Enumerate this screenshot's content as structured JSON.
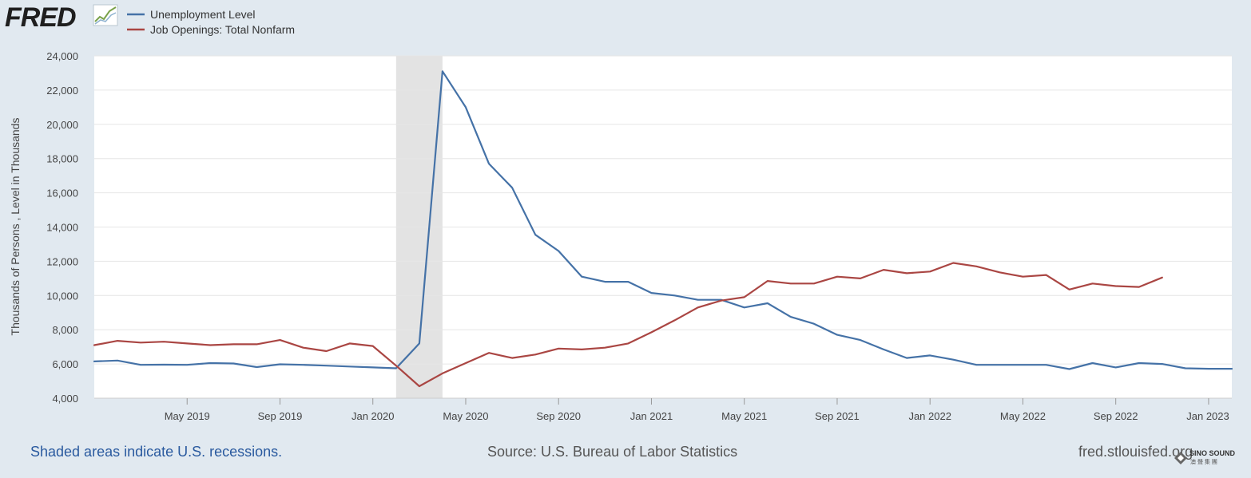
{
  "brand": {
    "logo_text": "FRED"
  },
  "legend": [
    {
      "label": "Unemployment Level",
      "color": "#4572a7"
    },
    {
      "label": "Job Openings: Total Nonfarm",
      "color": "#aa4643"
    }
  ],
  "chart_data": {
    "type": "line",
    "ylabel": "Thousands of Persons , Level in Thousands",
    "ylim": [
      4000,
      24000
    ],
    "y_ticks": [
      4000,
      6000,
      8000,
      10000,
      12000,
      14000,
      16000,
      18000,
      20000,
      22000,
      24000
    ],
    "y_tick_labels": [
      "4,000",
      "6,000",
      "8,000",
      "10,000",
      "12,000",
      "14,000",
      "16,000",
      "18,000",
      "20,000",
      "22,000",
      "24,000"
    ],
    "x_range": [
      "2019-01",
      "2023-02"
    ],
    "x_ticks": [
      "2019-05",
      "2019-09",
      "2020-01",
      "2020-05",
      "2020-09",
      "2021-01",
      "2021-05",
      "2021-09",
      "2022-01",
      "2022-05",
      "2022-09",
      "2023-01"
    ],
    "x_tick_labels": [
      "May 2019",
      "Sep 2019",
      "Jan 2020",
      "May 2020",
      "Sep 2020",
      "Jan 2021",
      "May 2021",
      "Sep 2021",
      "Jan 2022",
      "May 2022",
      "Sep 2022",
      "Jan 2023"
    ],
    "grid": true,
    "legend_position": "top-left",
    "recessions": [
      {
        "start": "2020-02",
        "end": "2020-04"
      }
    ],
    "x": [
      "2019-01",
      "2019-02",
      "2019-03",
      "2019-04",
      "2019-05",
      "2019-06",
      "2019-07",
      "2019-08",
      "2019-09",
      "2019-10",
      "2019-11",
      "2019-12",
      "2020-01",
      "2020-02",
      "2020-03",
      "2020-04",
      "2020-05",
      "2020-06",
      "2020-07",
      "2020-08",
      "2020-09",
      "2020-10",
      "2020-11",
      "2020-12",
      "2021-01",
      "2021-02",
      "2021-03",
      "2021-04",
      "2021-05",
      "2021-06",
      "2021-07",
      "2021-08",
      "2021-09",
      "2021-10",
      "2021-11",
      "2021-12",
      "2022-01",
      "2022-02",
      "2022-03",
      "2022-04",
      "2022-05",
      "2022-06",
      "2022-07",
      "2022-08",
      "2022-09",
      "2022-10",
      "2022-11",
      "2022-12",
      "2023-01",
      "2023-02"
    ],
    "series": [
      {
        "name": "Unemployment Level",
        "color": "#4572a7",
        "values": [
          6150,
          6200,
          5950,
          5960,
          5950,
          6050,
          6030,
          5820,
          5980,
          5950,
          5900,
          5850,
          5800,
          5750,
          7200,
          23100,
          21000,
          17700,
          16300,
          13550,
          12600,
          11100,
          10800,
          10800,
          10150,
          10000,
          9750,
          9750,
          9300,
          9550,
          8750,
          8350,
          7700,
          7400,
          6850,
          6350,
          6500,
          6250,
          5950,
          5950,
          5950,
          5950,
          5700,
          6050,
          5800,
          6050,
          6000,
          5750,
          5720,
          5720
        ]
      },
      {
        "name": "Job Openings: Total Nonfarm",
        "color": "#aa4643",
        "values": [
          7100,
          7350,
          7250,
          7300,
          7200,
          7100,
          7150,
          7150,
          7400,
          6950,
          6750,
          7200,
          7050,
          5900,
          4700,
          5450,
          6050,
          6650,
          6350,
          6550,
          6900,
          6850,
          6950,
          7200,
          7850,
          8550,
          9300,
          9700,
          9900,
          10850,
          10700,
          10700,
          11100,
          11000,
          11500,
          11300,
          11400,
          11900,
          11700,
          11350,
          11100,
          11200,
          10350,
          10700,
          10550,
          10500,
          11050,
          null,
          null,
          null
        ]
      }
    ]
  },
  "footer": {
    "recession_note": "Shaded areas indicate U.S. recessions.",
    "source": "Source: U.S. Bureau of Labor Statistics",
    "site": "fred.stlouisfed.org"
  },
  "watermark": {
    "text_line1": "SINO SOUND",
    "text_line2": "澳 聲 集 團"
  }
}
